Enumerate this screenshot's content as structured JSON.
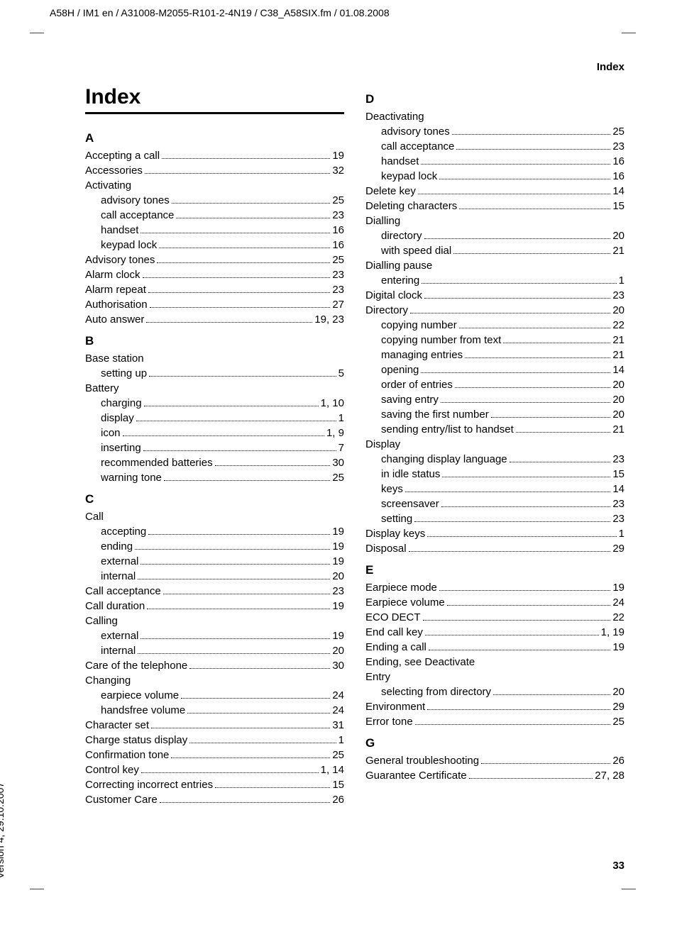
{
  "top_header": "A58H / IM1 en / A31008-M2055-R101-2-4N19 / C38_A58SIX.fm / 01.08.2008",
  "header_right": "Index",
  "page_number": "33",
  "vertical_note": "Version 4, 29.10.2007",
  "index_title": "Index",
  "cols": {
    "left": [
      {
        "type": "section",
        "letter": "A"
      },
      {
        "type": "entry",
        "label": "Accepting a call",
        "page": "19"
      },
      {
        "type": "entry",
        "label": "Accessories",
        "page": "32"
      },
      {
        "type": "heading",
        "label": "Activating"
      },
      {
        "type": "entry",
        "sub": true,
        "label": "advisory tones",
        "page": "25"
      },
      {
        "type": "entry",
        "sub": true,
        "label": "call acceptance",
        "page": "23"
      },
      {
        "type": "entry",
        "sub": true,
        "label": "handset",
        "page": "16"
      },
      {
        "type": "entry",
        "sub": true,
        "label": "keypad lock",
        "page": "16"
      },
      {
        "type": "entry",
        "label": "Advisory tones",
        "page": "25"
      },
      {
        "type": "entry",
        "label": "Alarm clock",
        "page": "23"
      },
      {
        "type": "entry",
        "label": "Alarm repeat",
        "page": "23"
      },
      {
        "type": "entry",
        "label": "Authorisation",
        "page": "27"
      },
      {
        "type": "entry",
        "label": "Auto answer",
        "page": "19, 23"
      },
      {
        "type": "section",
        "letter": "B"
      },
      {
        "type": "heading",
        "label": "Base station"
      },
      {
        "type": "entry",
        "sub": true,
        "label": "setting up",
        "page": "5"
      },
      {
        "type": "heading",
        "label": "Battery"
      },
      {
        "type": "entry",
        "sub": true,
        "label": "charging",
        "page": "1, 10"
      },
      {
        "type": "entry",
        "sub": true,
        "label": "display",
        "page": "1"
      },
      {
        "type": "entry",
        "sub": true,
        "label": "icon",
        "page": "1, 9"
      },
      {
        "type": "entry",
        "sub": true,
        "label": "inserting",
        "page": "7"
      },
      {
        "type": "entry",
        "sub": true,
        "label": "recommended batteries",
        "page": "30"
      },
      {
        "type": "entry",
        "sub": true,
        "label": "warning tone",
        "page": "25"
      },
      {
        "type": "section",
        "letter": "C"
      },
      {
        "type": "heading",
        "label": "Call"
      },
      {
        "type": "entry",
        "sub": true,
        "label": "accepting",
        "page": "19"
      },
      {
        "type": "entry",
        "sub": true,
        "label": "ending",
        "page": "19"
      },
      {
        "type": "entry",
        "sub": true,
        "label": "external",
        "page": "19"
      },
      {
        "type": "entry",
        "sub": true,
        "label": "internal",
        "page": "20"
      },
      {
        "type": "entry",
        "label": "Call acceptance",
        "page": "23"
      },
      {
        "type": "entry",
        "label": "Call duration",
        "page": "19"
      },
      {
        "type": "heading",
        "label": "Calling"
      },
      {
        "type": "entry",
        "sub": true,
        "label": "external",
        "page": "19"
      },
      {
        "type": "entry",
        "sub": true,
        "label": "internal",
        "page": "20"
      },
      {
        "type": "entry",
        "label": "Care of the telephone",
        "page": "30"
      },
      {
        "type": "heading",
        "label": "Changing"
      },
      {
        "type": "entry",
        "sub": true,
        "label": "earpiece volume",
        "page": "24"
      },
      {
        "type": "entry",
        "sub": true,
        "label": "handsfree volume",
        "page": "24"
      },
      {
        "type": "entry",
        "label": "Character set",
        "page": "31"
      },
      {
        "type": "entry",
        "label": "Charge status display",
        "page": "1"
      },
      {
        "type": "entry",
        "label": "Confirmation tone",
        "page": "25"
      },
      {
        "type": "entry",
        "label": "Control key",
        "page": "1, 14"
      },
      {
        "type": "entry",
        "label": "Correcting incorrect entries",
        "page": "15"
      },
      {
        "type": "entry",
        "label": "Customer Care",
        "page": "26"
      }
    ],
    "right": [
      {
        "type": "section",
        "letter": "D"
      },
      {
        "type": "heading",
        "label": "Deactivating"
      },
      {
        "type": "entry",
        "sub": true,
        "label": "advisory tones",
        "page": "25"
      },
      {
        "type": "entry",
        "sub": true,
        "label": "call acceptance",
        "page": "23"
      },
      {
        "type": "entry",
        "sub": true,
        "label": "handset",
        "page": "16"
      },
      {
        "type": "entry",
        "sub": true,
        "label": "keypad lock",
        "page": "16"
      },
      {
        "type": "entry",
        "label": "Delete key",
        "page": "14"
      },
      {
        "type": "entry",
        "label": "Deleting characters",
        "page": "15"
      },
      {
        "type": "heading",
        "label": "Dialling"
      },
      {
        "type": "entry",
        "sub": true,
        "label": "directory",
        "page": "20"
      },
      {
        "type": "entry",
        "sub": true,
        "label": "with speed dial",
        "page": "21"
      },
      {
        "type": "heading",
        "label": "Dialling pause"
      },
      {
        "type": "entry",
        "sub": true,
        "label": "entering",
        "page": "1"
      },
      {
        "type": "entry",
        "label": "Digital clock",
        "page": "23"
      },
      {
        "type": "entry",
        "label": "Directory",
        "page": "20"
      },
      {
        "type": "entry",
        "sub": true,
        "label": "copying number",
        "page": "22"
      },
      {
        "type": "entry",
        "sub": true,
        "label": "copying number from text",
        "page": "21"
      },
      {
        "type": "entry",
        "sub": true,
        "label": "managing entries",
        "page": "21"
      },
      {
        "type": "entry",
        "sub": true,
        "label": "opening",
        "page": "14"
      },
      {
        "type": "entry",
        "sub": true,
        "label": "order of entries",
        "page": "20"
      },
      {
        "type": "entry",
        "sub": true,
        "label": "saving entry",
        "page": "20"
      },
      {
        "type": "entry",
        "sub": true,
        "label": "saving the first number",
        "page": "20"
      },
      {
        "type": "entry",
        "sub": true,
        "label": "sending entry/list to handset",
        "page": "21"
      },
      {
        "type": "heading",
        "label": "Display"
      },
      {
        "type": "entry",
        "sub": true,
        "label": "changing display language",
        "page": "23"
      },
      {
        "type": "entry",
        "sub": true,
        "label": "in idle status",
        "page": "15"
      },
      {
        "type": "entry",
        "sub": true,
        "label": "keys",
        "page": "14"
      },
      {
        "type": "entry",
        "sub": true,
        "label": "screensaver",
        "page": "23"
      },
      {
        "type": "entry",
        "sub": true,
        "label": "setting",
        "page": "23"
      },
      {
        "type": "entry",
        "label": "Display keys",
        "page": "1"
      },
      {
        "type": "entry",
        "label": "Disposal",
        "page": "29"
      },
      {
        "type": "section",
        "letter": "E"
      },
      {
        "type": "entry",
        "label": "Earpiece mode",
        "page": "19"
      },
      {
        "type": "entry",
        "label": "Earpiece volume",
        "page": "24"
      },
      {
        "type": "entry",
        "label": "ECO DECT",
        "page": "22"
      },
      {
        "type": "entry",
        "label": "End call key",
        "page": "1, 19"
      },
      {
        "type": "entry",
        "label": "Ending a call",
        "page": "19"
      },
      {
        "type": "heading",
        "label": "Ending, see Deactivate"
      },
      {
        "type": "heading",
        "label": "Entry"
      },
      {
        "type": "entry",
        "sub": true,
        "label": "selecting from directory",
        "page": "20"
      },
      {
        "type": "entry",
        "label": "Environment",
        "page": "29"
      },
      {
        "type": "entry",
        "label": "Error tone",
        "page": "25"
      },
      {
        "type": "section",
        "letter": "G"
      },
      {
        "type": "entry",
        "label": "General troubleshooting",
        "page": "26"
      },
      {
        "type": "entry",
        "label": "Guarantee Certificate",
        "page": "27, 28"
      }
    ]
  }
}
